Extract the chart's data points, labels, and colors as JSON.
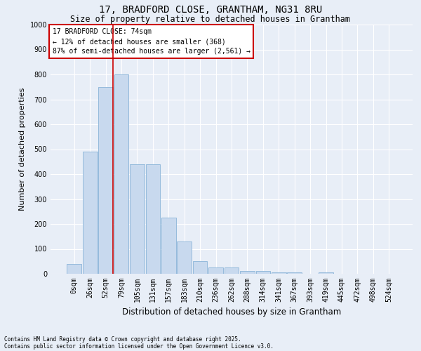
{
  "title_line1": "17, BRADFORD CLOSE, GRANTHAM, NG31 8RU",
  "title_line2": "Size of property relative to detached houses in Grantham",
  "xlabel": "Distribution of detached houses by size in Grantham",
  "ylabel": "Number of detached properties",
  "categories": [
    "0sqm",
    "26sqm",
    "52sqm",
    "79sqm",
    "105sqm",
    "131sqm",
    "157sqm",
    "183sqm",
    "210sqm",
    "236sqm",
    "262sqm",
    "288sqm",
    "314sqm",
    "341sqm",
    "367sqm",
    "393sqm",
    "419sqm",
    "445sqm",
    "472sqm",
    "498sqm",
    "524sqm"
  ],
  "bar_values": [
    40,
    490,
    750,
    800,
    440,
    440,
    225,
    130,
    50,
    25,
    25,
    10,
    10,
    5,
    5,
    0,
    5,
    0,
    0,
    0,
    0
  ],
  "bar_color": "#c8d9ee",
  "bar_edge_color": "#8ab4d8",
  "vline_color": "#cc0000",
  "vline_x": 2.48,
  "ylim": [
    0,
    1000
  ],
  "yticks": [
    0,
    100,
    200,
    300,
    400,
    500,
    600,
    700,
    800,
    900,
    1000
  ],
  "annotation_text": "17 BRADFORD CLOSE: 74sqm\n← 12% of detached houses are smaller (368)\n87% of semi-detached houses are larger (2,561) →",
  "footer_line1": "Contains HM Land Registry data © Crown copyright and database right 2025.",
  "footer_line2": "Contains public sector information licensed under the Open Government Licence v3.0.",
  "background_color": "#e8eef7",
  "grid_color": "#ffffff",
  "title_fontsize": 10,
  "subtitle_fontsize": 8.5,
  "ylabel_fontsize": 8,
  "xlabel_fontsize": 8.5,
  "tick_fontsize": 7,
  "annot_fontsize": 7,
  "footer_fontsize": 5.5
}
